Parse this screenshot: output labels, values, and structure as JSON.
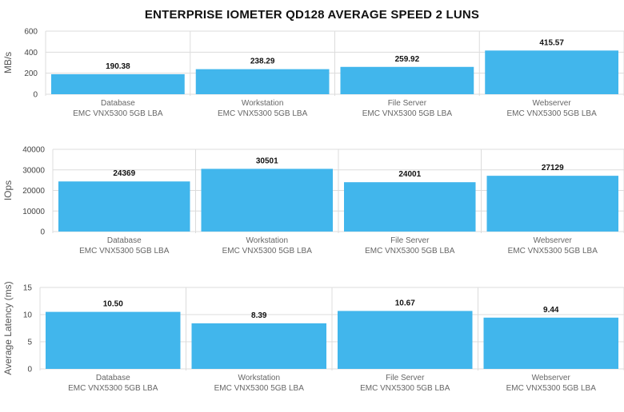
{
  "title": "ENTERPRISE IOMETER QD128 AVERAGE SPEED 2 LUNS",
  "colors": {
    "bar": "#41b6ec",
    "grid": "#dcdcdc"
  },
  "chart_data": [
    {
      "type": "bar",
      "categories": [
        "Database",
        "Workstation",
        "File Server",
        "Webserver"
      ],
      "subcategory": "EMC VNX5300 5GB LBA",
      "values": [
        190.38,
        238.29,
        259.92,
        415.57
      ],
      "value_labels": [
        "190.38",
        "238.29",
        "259.92",
        "415.57"
      ],
      "ylabel": "MB/s",
      "ylim": [
        0,
        600
      ],
      "yticks": [
        0,
        200,
        400,
        600
      ],
      "grid": true
    },
    {
      "type": "bar",
      "categories": [
        "Database",
        "Workstation",
        "File Server",
        "Webserver"
      ],
      "subcategory": "EMC VNX5300 5GB LBA",
      "values": [
        24369,
        30501,
        24001,
        27129
      ],
      "value_labels": [
        "24369",
        "30501",
        "24001",
        "27129"
      ],
      "ylabel": "IOps",
      "ylim": [
        0,
        40000
      ],
      "yticks": [
        0,
        10000,
        20000,
        30000,
        40000
      ],
      "grid": true
    },
    {
      "type": "bar",
      "categories": [
        "Database",
        "Workstation",
        "File Server",
        "Webserver"
      ],
      "subcategory": "EMC VNX5300 5GB LBA",
      "values": [
        10.5,
        8.39,
        10.67,
        9.44
      ],
      "value_labels": [
        "10.50",
        "8.39",
        "10.67",
        "9.44"
      ],
      "ylabel": "Average Latency (ms)",
      "ylim": [
        0,
        15
      ],
      "yticks": [
        0,
        5,
        10,
        15
      ],
      "grid": true
    }
  ]
}
